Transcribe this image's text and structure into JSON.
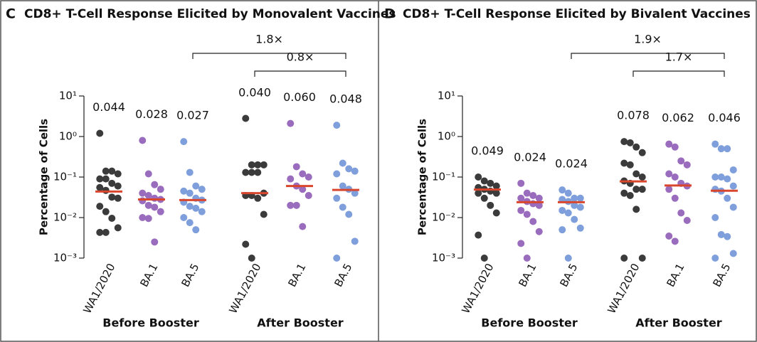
{
  "chart_data": [
    {
      "type": "strip",
      "panel": "C",
      "title": "CD8+ T-Cell Response Elicited by Monovalent Vaccines",
      "y_label": "Percentage of Cells",
      "log_scale": true,
      "ylim": [
        0.001,
        10
      ],
      "yticks": [
        {
          "value": 10,
          "label": "10¹"
        },
        {
          "value": 1,
          "label": "10⁰"
        },
        {
          "value": 0.1,
          "label": "10⁻¹"
        },
        {
          "value": 0.01,
          "label": "10⁻²"
        },
        {
          "value": 0.001,
          "label": "10⁻³"
        }
      ],
      "categories": [
        "WA1/2020",
        "BA.1",
        "BA.5",
        "WA1/2020",
        "BA.1",
        "BA.5"
      ],
      "colors": [
        "#3b3b3b",
        "#9a6cbd",
        "#7f9fdc",
        "#3b3b3b",
        "#9a6cbd",
        "#7f9fdc"
      ],
      "median_color": "#d9462e",
      "medians": [
        0.044,
        0.028,
        0.027,
        0.04,
        0.06,
        0.048
      ],
      "median_labels": [
        "0.044",
        "0.028",
        "0.027",
        "0.040",
        "0.060",
        "0.048"
      ],
      "values": [
        [
          1.2,
          0.14,
          0.14,
          0.12,
          0.09,
          0.09,
          0.07,
          0.06,
          0.055,
          0.047,
          0.032,
          0.03,
          0.019,
          0.014,
          0.0096,
          0.0056,
          0.0043,
          0.0043
        ],
        [
          0.8,
          0.12,
          0.065,
          0.05,
          0.04,
          0.035,
          0.03,
          0.028,
          0.026,
          0.02,
          0.018,
          0.014,
          0.01,
          0.0095,
          0.0025
        ],
        [
          0.75,
          0.13,
          0.06,
          0.05,
          0.045,
          0.04,
          0.03,
          0.027,
          0.024,
          0.019,
          0.017,
          0.014,
          0.01,
          0.0075,
          0.005
        ],
        [
          2.8,
          0.2,
          0.2,
          0.2,
          0.13,
          0.13,
          0.13,
          0.04,
          0.035,
          0.035,
          0.03,
          0.012,
          0.0022,
          0.001
        ],
        [
          2.1,
          0.18,
          0.12,
          0.1,
          0.09,
          0.06,
          0.05,
          0.035,
          0.02,
          0.02,
          0.006
        ],
        [
          1.9,
          0.22,
          0.16,
          0.14,
          0.12,
          0.06,
          0.05,
          0.04,
          0.03,
          0.018,
          0.012,
          0.0026,
          0.001
        ]
      ],
      "groups": [
        {
          "label": "Before Booster",
          "from": 0,
          "to": 2
        },
        {
          "label": "After Booster",
          "from": 3,
          "to": 5
        }
      ],
      "comparisons": [
        {
          "from": 2,
          "to": 5,
          "label": "1.8×"
        },
        {
          "from": 3,
          "to": 5,
          "label": "0.8×"
        }
      ]
    },
    {
      "type": "strip",
      "panel": "D",
      "title": "CD8+ T-Cell Response Elicited by Bivalent Vaccines",
      "y_label": "Percentage of Cells",
      "log_scale": true,
      "ylim": [
        0.001,
        10
      ],
      "yticks": [
        {
          "value": 10,
          "label": "10¹"
        },
        {
          "value": 1,
          "label": "10⁰"
        },
        {
          "value": 0.1,
          "label": "10⁻¹"
        },
        {
          "value": 0.01,
          "label": "10⁻²"
        },
        {
          "value": 0.001,
          "label": "10⁻³"
        }
      ],
      "categories": [
        "WA1/2020",
        "BA.1",
        "BA.5",
        "WA1/2020",
        "BA.1",
        "BA.5"
      ],
      "colors": [
        "#3b3b3b",
        "#9a6cbd",
        "#7f9fdc",
        "#3b3b3b",
        "#9a6cbd",
        "#7f9fdc"
      ],
      "median_color": "#d9462e",
      "medians": [
        0.049,
        0.024,
        0.024,
        0.078,
        0.062,
        0.046
      ],
      "median_labels": [
        "0.049",
        "0.024",
        "0.024",
        "0.078",
        "0.062",
        "0.046"
      ],
      "values": [
        [
          0.1,
          0.08,
          0.07,
          0.06,
          0.055,
          0.05,
          0.045,
          0.04,
          0.04,
          0.03,
          0.02,
          0.013,
          0.0037,
          0.001
        ],
        [
          0.07,
          0.04,
          0.035,
          0.03,
          0.03,
          0.025,
          0.022,
          0.02,
          0.015,
          0.012,
          0.008,
          0.0045,
          0.0023,
          0.001
        ],
        [
          0.048,
          0.04,
          0.03,
          0.03,
          0.028,
          0.025,
          0.02,
          0.018,
          0.015,
          0.013,
          0.009,
          0.0055,
          0.005,
          0.001
        ],
        [
          0.75,
          0.7,
          0.55,
          0.4,
          0.22,
          0.2,
          0.12,
          0.1,
          0.08,
          0.07,
          0.05,
          0.05,
          0.04,
          0.035,
          0.016,
          0.001,
          0.001
        ],
        [
          0.65,
          0.55,
          0.25,
          0.2,
          0.12,
          0.1,
          0.07,
          0.06,
          0.05,
          0.03,
          0.013,
          0.0085,
          0.0035,
          0.0026
        ],
        [
          0.65,
          0.5,
          0.5,
          0.15,
          0.1,
          0.1,
          0.09,
          0.06,
          0.05,
          0.045,
          0.03,
          0.018,
          0.01,
          0.0038,
          0.0034,
          0.0013,
          0.001
        ]
      ],
      "groups": [
        {
          "label": "Before Booster",
          "from": 0,
          "to": 2
        },
        {
          "label": "After Booster",
          "from": 3,
          "to": 5
        }
      ],
      "comparisons": [
        {
          "from": 2,
          "to": 5,
          "label": "1.9×"
        },
        {
          "from": 3,
          "to": 5,
          "label": "1.7×"
        }
      ]
    }
  ]
}
